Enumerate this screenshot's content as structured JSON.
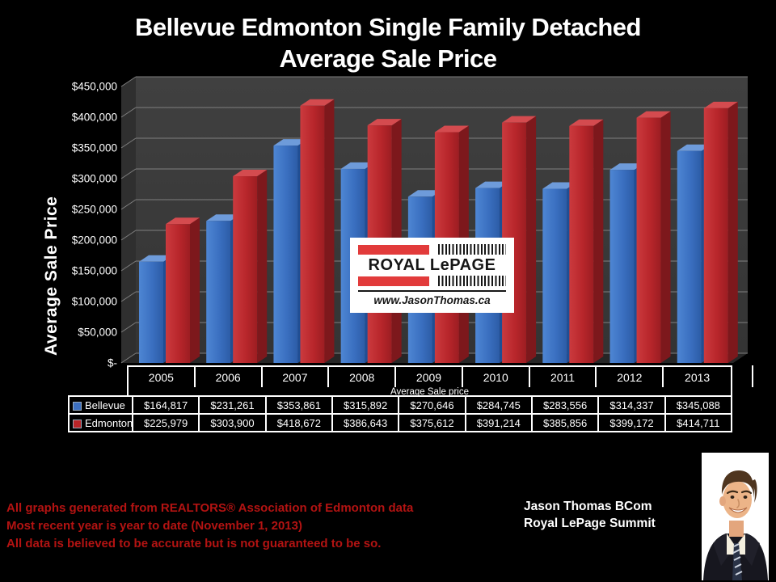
{
  "title": {
    "line1": "Bellevue Edmonton Single Family Detached",
    "line2": "Average Sale Price"
  },
  "chart_data": {
    "type": "bar",
    "title": "Bellevue Edmonton Single Family Detached Average Sale Price",
    "subtitle": "",
    "categories": [
      "2005",
      "2006",
      "2007",
      "2008",
      "2009",
      "2010",
      "2011",
      "2012",
      "2013"
    ],
    "series": [
      {
        "name": "Bellevue",
        "color": "#3c6fc0",
        "values": [
          164817,
          231261,
          353861,
          315892,
          270646,
          284745,
          283556,
          314337,
          345088
        ]
      },
      {
        "name": "Edmonton",
        "color": "#b92428",
        "values": [
          225979,
          303900,
          418672,
          386643,
          375612,
          391214,
          385856,
          399172,
          414711
        ]
      }
    ],
    "xlabel": "",
    "ylabel": "Average Sale Price",
    "ylim": [
      0,
      450000
    ],
    "y_ticks": [
      "$450,000",
      "$400,000",
      "$350,000",
      "$300,000",
      "$250,000",
      "$200,000",
      "$150,000",
      "$100,000",
      "$50,000",
      "$-"
    ],
    "grid": true,
    "style": "3d-clustered-column",
    "legend_position": "table-left"
  },
  "table": {
    "subheader": "Average Sale price",
    "rows": [
      {
        "label": "Bellevue",
        "swatch_color": "#3c6fc0",
        "values": [
          "$164,817",
          "$231,261",
          "$353,861",
          "$315,892",
          "$270,646",
          "$284,745",
          "$283,556",
          "$314,337",
          "$345,088"
        ]
      },
      {
        "label": "Edmonton",
        "swatch_color": "#b92428",
        "values": [
          "$225,979",
          "$303,900",
          "$418,672",
          "$386,643",
          "$375,612",
          "$391,214",
          "$385,856",
          "$399,172",
          "$414,711"
        ]
      }
    ]
  },
  "logo": {
    "brand": "ROYAL LePAGE",
    "website": "www.JasonThomas.ca"
  },
  "footer": {
    "disclaimer_lines": [
      "All graphs generated from REALTORS® Association of Edmonton data",
      "Most recent year is year to date (November 1, 2013)",
      "All data is believed to be accurate but is not guaranteed to be so."
    ],
    "disclaimer_color": "#b31312",
    "agent_name": "Jason Thomas BCom",
    "agent_company": "Royal LePage Summit"
  },
  "colors": {
    "background": "#000000",
    "plot_back_wall": "#3b3b3b",
    "plot_side_wall": "#2f2f2f",
    "plot_floor": "#262626",
    "gridline": "#7f7f7f",
    "bellevue_bar": "#3c6fc0",
    "edmonton_bar": "#b92428",
    "table_border": "#ffffff",
    "text": "#ffffff"
  }
}
